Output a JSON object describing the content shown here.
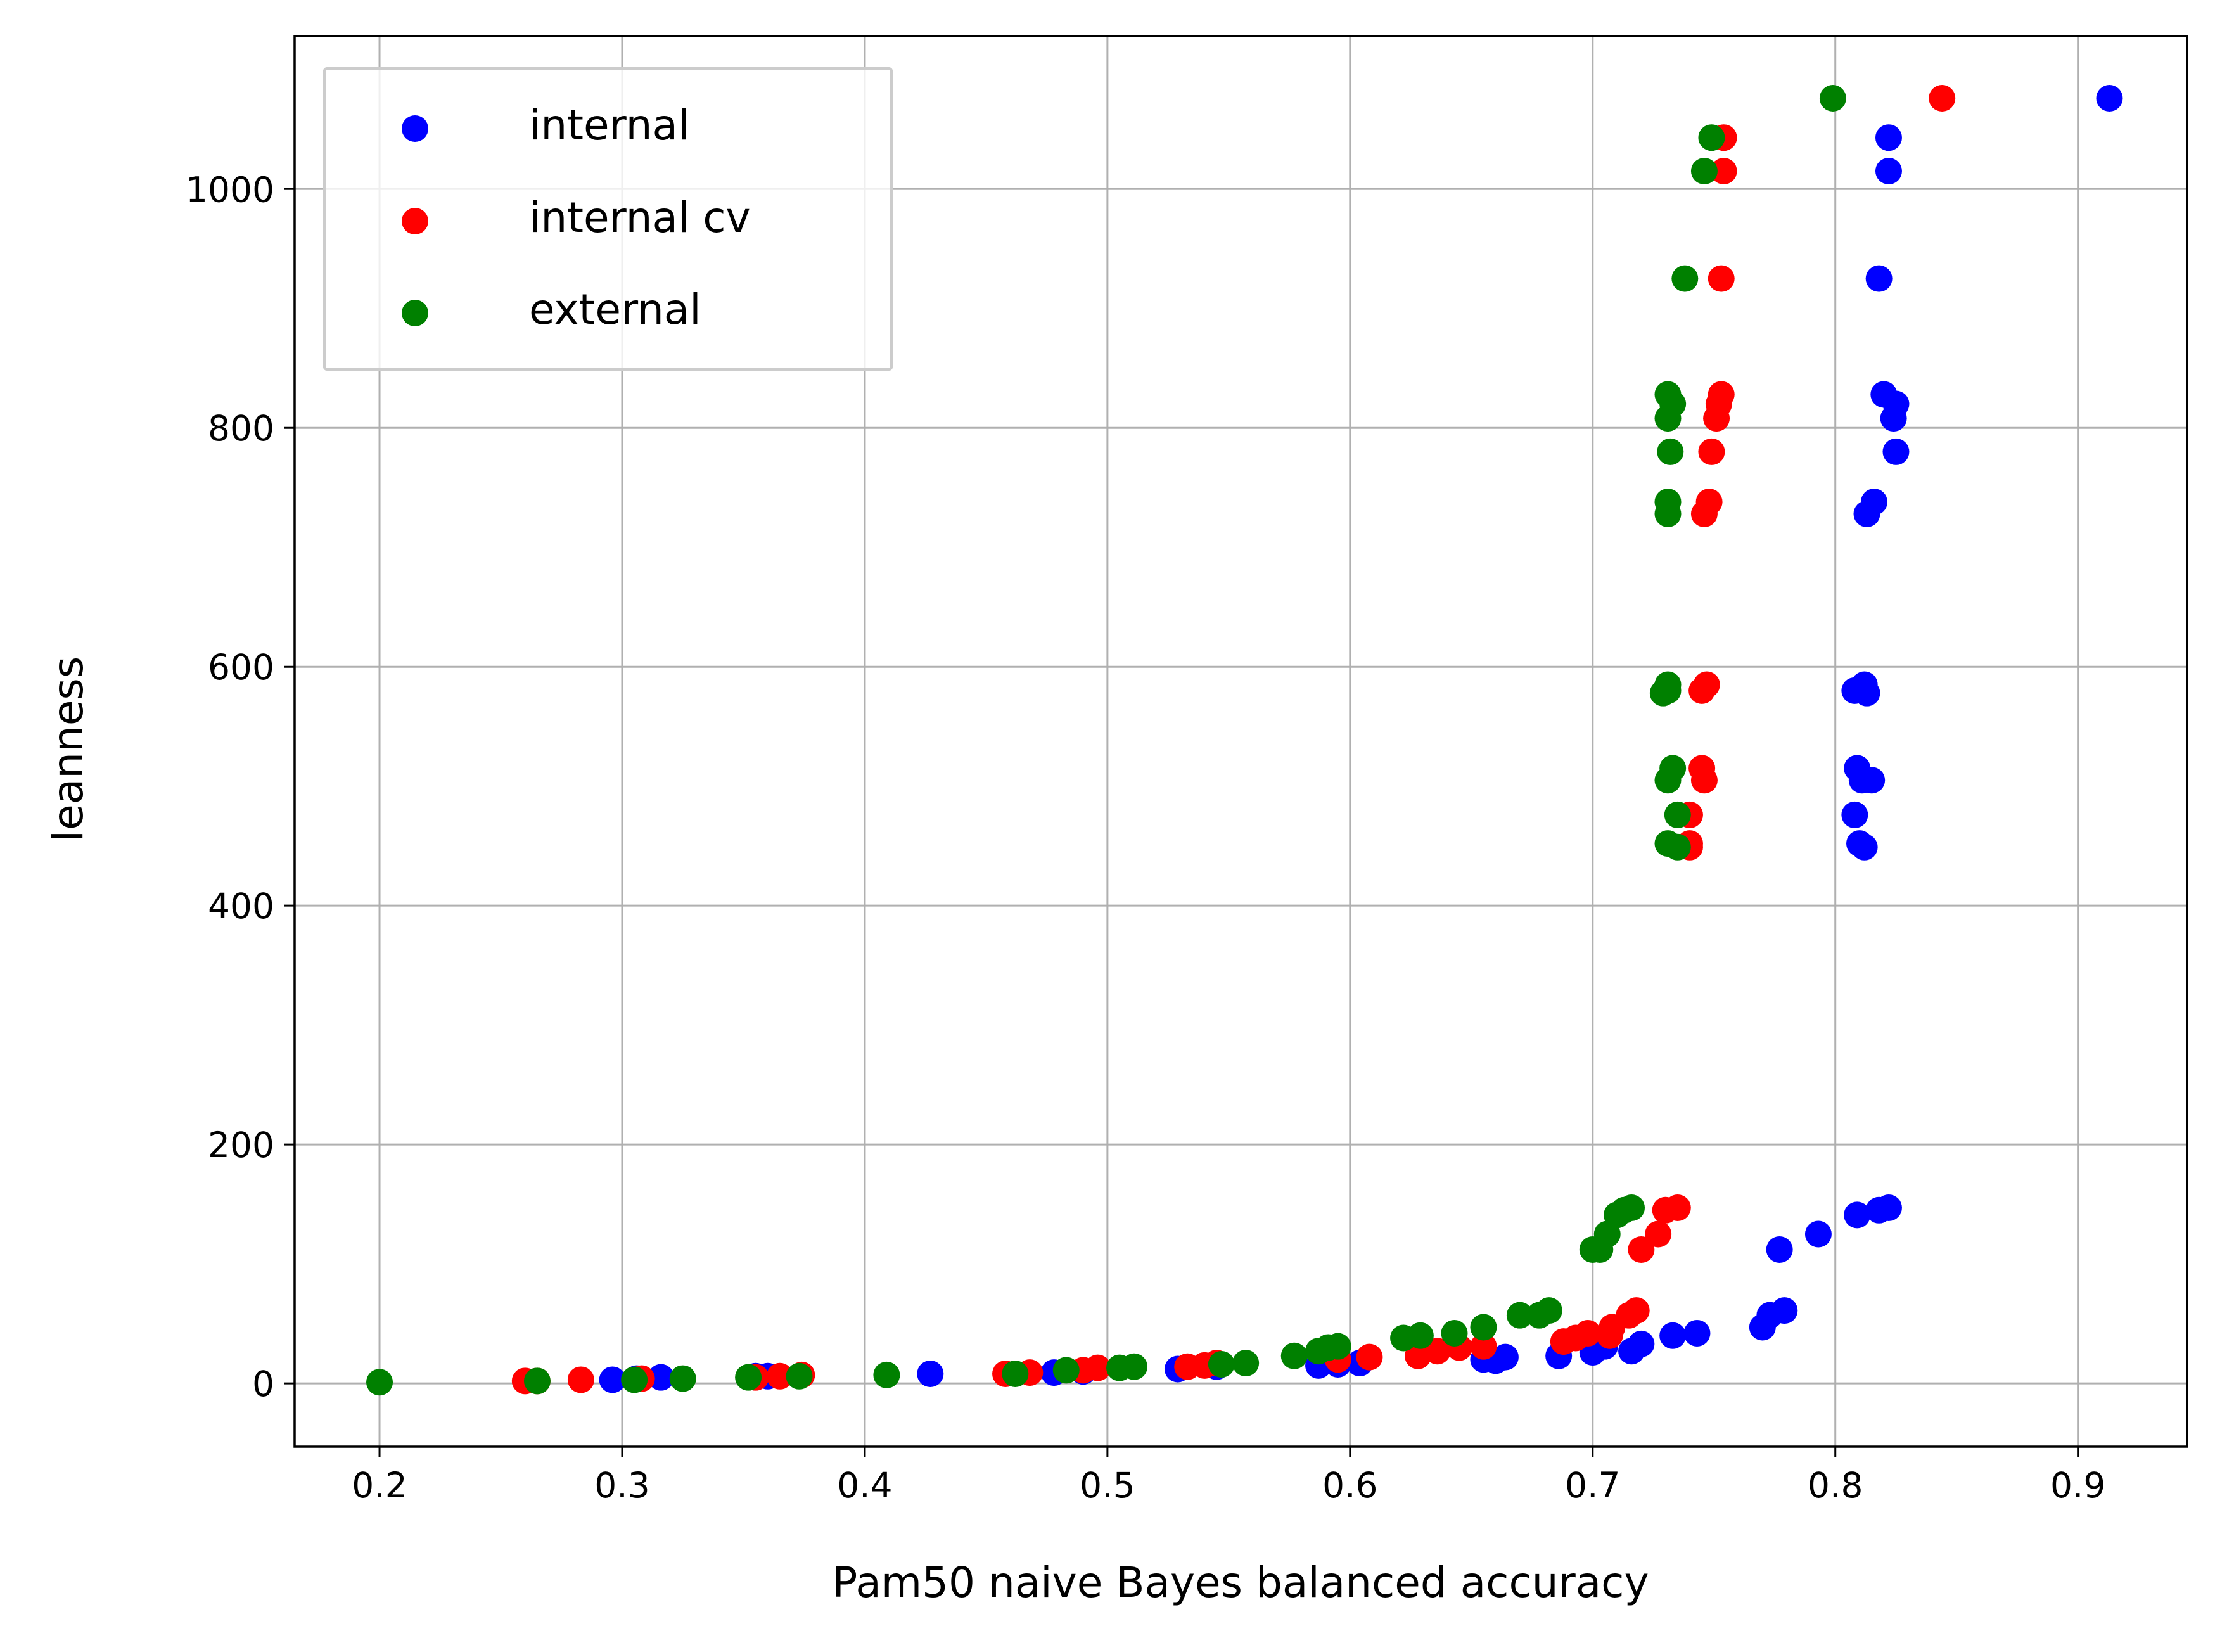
{
  "chart_data": {
    "type": "scatter",
    "title": "",
    "xlabel": "Pam50 naive Bayes balanced accuracy",
    "ylabel": "leanness",
    "xlim": [
      0.165,
      0.945
    ],
    "ylim": [
      -53,
      1128
    ],
    "xticks": [
      0.2,
      0.3,
      0.4,
      0.5,
      0.6,
      0.7,
      0.8,
      0.9
    ],
    "xtick_labels": [
      "0.2",
      "0.3",
      "0.4",
      "0.5",
      "0.6",
      "0.7",
      "0.8",
      "0.9"
    ],
    "yticks": [
      0,
      200,
      400,
      600,
      800,
      1000
    ],
    "ytick_labels": [
      "0",
      "200",
      "400",
      "600",
      "800",
      "1000"
    ],
    "grid": true,
    "legend_position": "top-left",
    "series": [
      {
        "name": "internal",
        "color": "#0000ff",
        "x": [
          0.913,
          0.822,
          0.822,
          0.818,
          0.82,
          0.825,
          0.824,
          0.825,
          0.816,
          0.813,
          0.808,
          0.812,
          0.813,
          0.809,
          0.811,
          0.815,
          0.808,
          0.81,
          0.812,
          0.822,
          0.818,
          0.809,
          0.793,
          0.777,
          0.779,
          0.773,
          0.77,
          0.743,
          0.733,
          0.72,
          0.716,
          0.705,
          0.7,
          0.686,
          0.664,
          0.66,
          0.655,
          0.604,
          0.595,
          0.587,
          0.545,
          0.529,
          0.49,
          0.478,
          0.427,
          0.36,
          0.355,
          0.316,
          0.306,
          0.296
        ],
        "y": [
          1076,
          1043,
          1015,
          925,
          828,
          820,
          808,
          780,
          738,
          728,
          580,
          585,
          578,
          515,
          505,
          505,
          476,
          452,
          449,
          147,
          145,
          141,
          125,
          112,
          61,
          57,
          47,
          42,
          40,
          33,
          27,
          31,
          26,
          23,
          22,
          19,
          20,
          17,
          16,
          15,
          14,
          12,
          10,
          9,
          8,
          6,
          6,
          5,
          4,
          3
        ]
      },
      {
        "name": "internal cv",
        "color": "#ff0000",
        "x": [
          0.844,
          0.754,
          0.754,
          0.753,
          0.753,
          0.752,
          0.751,
          0.749,
          0.748,
          0.746,
          0.747,
          0.745,
          0.745,
          0.746,
          0.74,
          0.74,
          0.74,
          0.735,
          0.73,
          0.727,
          0.72,
          0.718,
          0.715,
          0.708,
          0.707,
          0.698,
          0.693,
          0.688,
          0.655,
          0.645,
          0.636,
          0.628,
          0.608,
          0.595,
          0.545,
          0.54,
          0.533,
          0.496,
          0.49,
          0.468,
          0.458,
          0.374,
          0.365,
          0.355,
          0.308,
          0.283,
          0.265,
          0.26
        ],
        "y": [
          1076,
          1043,
          1015,
          925,
          828,
          820,
          808,
          780,
          738,
          728,
          585,
          580,
          515,
          505,
          476,
          452,
          449,
          147,
          145,
          125,
          112,
          61,
          57,
          47,
          40,
          42,
          38,
          35,
          31,
          30,
          27,
          23,
          22,
          20,
          17,
          15,
          14,
          13,
          11,
          9,
          8,
          7,
          6,
          5,
          4,
          3,
          2,
          2
        ]
      },
      {
        "name": "external",
        "color": "#008000",
        "x": [
          0.799,
          0.749,
          0.746,
          0.738,
          0.731,
          0.733,
          0.731,
          0.732,
          0.731,
          0.731,
          0.731,
          0.731,
          0.729,
          0.733,
          0.731,
          0.735,
          0.731,
          0.735,
          0.716,
          0.713,
          0.71,
          0.706,
          0.703,
          0.7,
          0.682,
          0.678,
          0.67,
          0.655,
          0.643,
          0.629,
          0.622,
          0.595,
          0.591,
          0.587,
          0.577,
          0.557,
          0.547,
          0.511,
          0.505,
          0.483,
          0.462,
          0.409,
          0.373,
          0.352,
          0.325,
          0.305,
          0.265,
          0.2
        ],
        "y": [
          1076,
          1043,
          1015,
          925,
          828,
          820,
          808,
          780,
          738,
          728,
          585,
          580,
          578,
          515,
          505,
          476,
          452,
          449,
          147,
          145,
          141,
          125,
          112,
          112,
          61,
          57,
          57,
          47,
          42,
          40,
          38,
          31,
          30,
          27,
          23,
          17,
          16,
          14,
          13,
          11,
          8,
          7,
          6,
          5,
          4,
          3,
          2,
          1
        ]
      }
    ]
  }
}
